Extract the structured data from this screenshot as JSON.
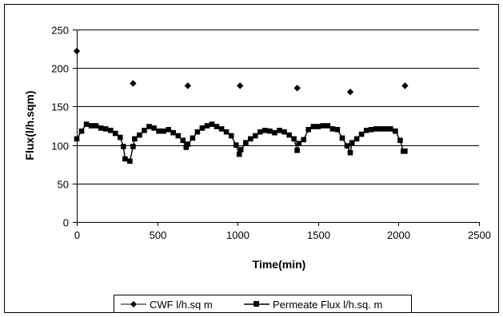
{
  "chart_data": {
    "type": "scatter",
    "xlabel": "Time(min)",
    "ylabel": "Flux(l/h.sqm)",
    "xlim": [
      0,
      2500
    ],
    "ylim": [
      0,
      250
    ],
    "x_ticks": [
      0,
      500,
      1000,
      1500,
      2000,
      2500
    ],
    "y_ticks": [
      0,
      50,
      100,
      150,
      200,
      250
    ],
    "x_tick_labels": [
      "0",
      "500",
      "1000",
      "1500",
      "2000",
      "2500"
    ],
    "y_tick_labels": [
      "0",
      "50",
      "100",
      "150",
      "200",
      "250"
    ],
    "grid": "horizontal",
    "legend_position": "bottom",
    "series": [
      {
        "name": "CWF l/h.sq m",
        "marker": "diamond",
        "line": false,
        "color": "#000000",
        "x": [
          0,
          350,
          690,
          1015,
          1370,
          1700,
          2040
        ],
        "y": [
          222,
          180,
          177,
          177,
          174,
          169,
          177
        ]
      },
      {
        "name": "Permeate Flux l/h.sq. m",
        "marker": "square",
        "line": true,
        "color": "#000000",
        "x": [
          0,
          30,
          60,
          90,
          120,
          150,
          180,
          210,
          240,
          270,
          290,
          300,
          330,
          350,
          360,
          390,
          420,
          450,
          480,
          510,
          540,
          570,
          600,
          630,
          660,
          680,
          690,
          720,
          750,
          780,
          810,
          840,
          870,
          900,
          930,
          960,
          990,
          1010,
          1020,
          1050,
          1080,
          1110,
          1140,
          1170,
          1200,
          1230,
          1260,
          1290,
          1320,
          1350,
          1370,
          1380,
          1410,
          1440,
          1470,
          1500,
          1530,
          1560,
          1590,
          1620,
          1650,
          1680,
          1700,
          1710,
          1740,
          1770,
          1800,
          1830,
          1860,
          1890,
          1920,
          1950,
          1980,
          2010,
          2030,
          2040
        ],
        "y": [
          108,
          118,
          127,
          125,
          125,
          122,
          121,
          119,
          115,
          110,
          98,
          82,
          79,
          98,
          108,
          113,
          119,
          124,
          122,
          118,
          118,
          120,
          116,
          112,
          106,
          97,
          101,
          109,
          117,
          122,
          125,
          127,
          124,
          121,
          117,
          112,
          100,
          88,
          94,
          103,
          108,
          112,
          117,
          119,
          118,
          116,
          119,
          117,
          113,
          108,
          93,
          102,
          107,
          120,
          124,
          124,
          125,
          125,
          121,
          120,
          109,
          99,
          90,
          103,
          108,
          114,
          119,
          120,
          121,
          121,
          121,
          121,
          118,
          106,
          92,
          92
        ]
      }
    ]
  }
}
